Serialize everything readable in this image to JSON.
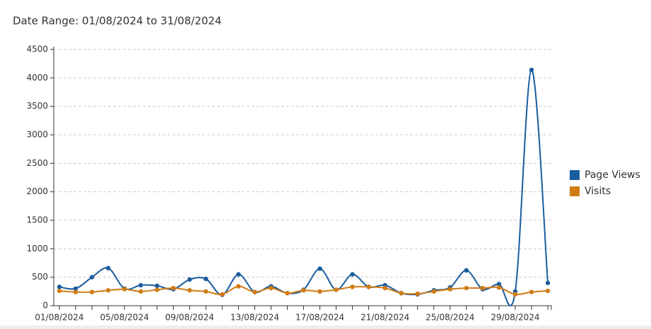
{
  "chart_data": {
    "type": "line",
    "title": "Date Range: 01/08/2024 to 31/08/2024",
    "categories": [
      "01/08/2024",
      null,
      null,
      null,
      "05/08/2024",
      null,
      null,
      null,
      "09/08/2024",
      null,
      null,
      null,
      "13/08/2024",
      null,
      null,
      null,
      "17/08/2024",
      null,
      null,
      null,
      "21/08/2024",
      null,
      null,
      null,
      "25/08/2024",
      null,
      null,
      null,
      "29/08/2024",
      null,
      null
    ],
    "series": [
      {
        "name": "Page Views",
        "color": "#1a5d9e",
        "values": [
          330,
          300,
          500,
          660,
          300,
          360,
          350,
          290,
          460,
          470,
          190,
          550,
          240,
          340,
          220,
          280,
          650,
          280,
          550,
          330,
          360,
          220,
          200,
          270,
          320,
          620,
          290,
          380,
          250,
          4140,
          400
        ]
      },
      {
        "name": "Visits",
        "color": "#d07c14",
        "values": [
          260,
          240,
          240,
          270,
          290,
          250,
          280,
          310,
          270,
          250,
          200,
          340,
          240,
          310,
          220,
          270,
          250,
          280,
          330,
          330,
          310,
          220,
          210,
          250,
          290,
          310,
          310,
          320,
          200,
          240,
          260
        ]
      }
    ],
    "ylim": [
      0,
      4500
    ],
    "yticks": [
      0,
      500,
      1000,
      1500,
      2000,
      2500,
      3000,
      3500,
      4000,
      4500
    ],
    "grid": true,
    "legend": "right"
  }
}
